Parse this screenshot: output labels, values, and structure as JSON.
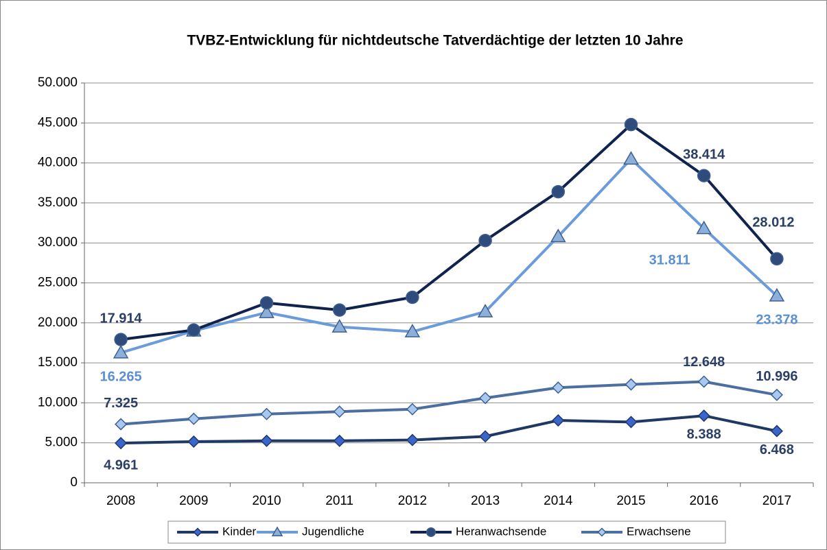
{
  "chart_data": {
    "type": "line",
    "title": "TVBZ-Entwicklung  für nichtdeutsche Tatverdächtige der letzten 10 Jahre",
    "categories": [
      "2008",
      "2009",
      "2010",
      "2011",
      "2012",
      "2013",
      "2014",
      "2015",
      "2016",
      "2017"
    ],
    "ylim": [
      0,
      50000
    ],
    "yticks": [
      0,
      {
        "value": 5000,
        "label": "5.000"
      },
      {
        "value": 10000,
        "label": "10.000"
      },
      {
        "value": 15000,
        "label": "15.000"
      },
      {
        "value": 20000,
        "label": "20.000"
      },
      {
        "value": 25000,
        "label": "25.000"
      },
      {
        "value": 30000,
        "label": "30.000"
      },
      {
        "value": 35000,
        "label": "35.000"
      },
      {
        "value": 40000,
        "label": "40.000"
      },
      {
        "value": 45000,
        "label": "45.000"
      },
      {
        "value": 50000,
        "label": "50.000"
      }
    ],
    "grid": true,
    "legend": "bottom",
    "series": [
      {
        "name": "Kinder",
        "color": "#1f3864",
        "marker": "diamond",
        "marker_color": "#3b64cc",
        "label_color": "#2b3f66",
        "values": [
          4961,
          5150,
          5250,
          5250,
          5350,
          5800,
          7800,
          7600,
          8388,
          6468
        ],
        "value_labels": [
          "4.961",
          null,
          null,
          null,
          null,
          null,
          null,
          null,
          "8.388",
          "6.468"
        ]
      },
      {
        "name": "Jugendliche",
        "color": "#6b9bd9",
        "marker": "triangle",
        "marker_color": "#8db0da",
        "label_color": "#5b8fd3",
        "values": [
          16265,
          19000,
          21300,
          19500,
          18900,
          21400,
          30800,
          40500,
          31811,
          23378
        ],
        "value_labels": [
          "16.265",
          null,
          null,
          null,
          null,
          null,
          null,
          null,
          "31.811",
          "23.378"
        ]
      },
      {
        "name": "Heranwachsende",
        "color": "#10234f",
        "marker": "circle",
        "marker_color": "#2f4b7c",
        "label_color": "#2b3f66",
        "values": [
          17914,
          19100,
          22500,
          21600,
          23200,
          30300,
          36400,
          44800,
          38414,
          28012
        ],
        "value_labels": [
          "17.914",
          null,
          null,
          null,
          null,
          null,
          null,
          null,
          "38.414",
          "28.012"
        ]
      },
      {
        "name": "Erwachsene",
        "color": "#4a6fa0",
        "marker": "diamond",
        "marker_color": "#a9c8ef",
        "label_color": "#2b3f66",
        "values": [
          7325,
          8000,
          8600,
          8900,
          9200,
          10600,
          11900,
          12300,
          12648,
          10996
        ],
        "value_labels": [
          "7.325",
          null,
          null,
          null,
          null,
          null,
          null,
          null,
          "12.648",
          "10.996"
        ]
      }
    ]
  }
}
